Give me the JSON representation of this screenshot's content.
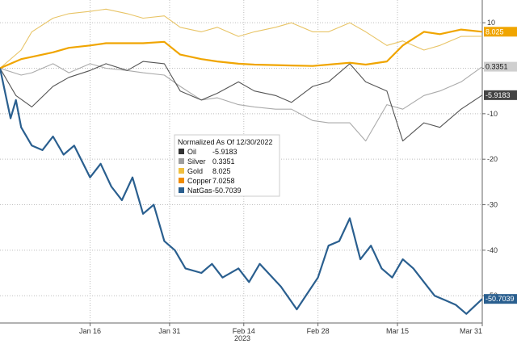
{
  "chart_data": {
    "type": "line",
    "title": "",
    "xlabel": "2023",
    "ylabel": "",
    "x_tick_labels": [
      "Jan 16",
      "Jan 31",
      "Feb 14",
      "Feb 28",
      "Mar 15",
      "Mar 31"
    ],
    "x_start": "2022-12-30",
    "x_ticks": [
      "2023-01-16",
      "2023-01-31",
      "2023-02-14",
      "2023-02-28",
      "2023-03-15",
      "2023-03-31"
    ],
    "ylim": [
      -56,
      15
    ],
    "y_ticks": [
      10,
      0,
      -10,
      -20,
      -30,
      -40,
      -50
    ],
    "y_tick_labels": [
      "10",
      "0",
      "-10",
      "-20",
      "-30",
      "-40",
      "-50"
    ],
    "grid": true,
    "legend": {
      "title": "Normalized As Of 12/30/2022",
      "placement": "center",
      "entries": [
        {
          "name": "Oil",
          "value": "-5.9183"
        },
        {
          "name": "Silver",
          "value": "0.3351"
        },
        {
          "name": "Gold",
          "value": "8.025"
        },
        {
          "name": "Copper",
          "value": "7.0258"
        },
        {
          "name": "NatGas",
          "value": "-50.7039"
        }
      ]
    },
    "series": [
      {
        "name": "Silver",
        "color": "#aaaaaa",
        "last_label": "0.3351",
        "points": [
          [
            "2022-12-30",
            0
          ],
          [
            "2023-01-03",
            -1.5
          ],
          [
            "2023-01-05",
            -1
          ],
          [
            "2023-01-09",
            1
          ],
          [
            "2023-01-12",
            -1
          ],
          [
            "2023-01-16",
            1
          ],
          [
            "2023-01-19",
            0
          ],
          [
            "2023-01-23",
            -0.5
          ],
          [
            "2023-01-26",
            -1
          ],
          [
            "2023-01-30",
            -1.5
          ],
          [
            "2023-02-02",
            -4
          ],
          [
            "2023-02-06",
            -7
          ],
          [
            "2023-02-09",
            -6.5
          ],
          [
            "2023-02-13",
            -8
          ],
          [
            "2023-02-16",
            -8.5
          ],
          [
            "2023-02-20",
            -9
          ],
          [
            "2023-02-23",
            -9
          ],
          [
            "2023-02-27",
            -11.5
          ],
          [
            "2023-03-02",
            -12
          ],
          [
            "2023-03-06",
            -12
          ],
          [
            "2023-03-09",
            -16
          ],
          [
            "2023-03-13",
            -8
          ],
          [
            "2023-03-16",
            -9
          ],
          [
            "2023-03-20",
            -6
          ],
          [
            "2023-03-23",
            -5
          ],
          [
            "2023-03-27",
            -3
          ],
          [
            "2023-03-31",
            0.3351
          ]
        ]
      },
      {
        "name": "Oil",
        "color": "#555555",
        "last_label": "-5.9183",
        "points": [
          [
            "2022-12-30",
            0
          ],
          [
            "2023-01-02",
            -6
          ],
          [
            "2023-01-05",
            -8.5
          ],
          [
            "2023-01-09",
            -4
          ],
          [
            "2023-01-12",
            -2
          ],
          [
            "2023-01-16",
            -0.5
          ],
          [
            "2023-01-19",
            1
          ],
          [
            "2023-01-23",
            -0.5
          ],
          [
            "2023-01-26",
            1.5
          ],
          [
            "2023-01-30",
            1
          ],
          [
            "2023-02-02",
            -5
          ],
          [
            "2023-02-06",
            -7
          ],
          [
            "2023-02-09",
            -5.5
          ],
          [
            "2023-02-13",
            -3
          ],
          [
            "2023-02-16",
            -5
          ],
          [
            "2023-02-20",
            -6
          ],
          [
            "2023-02-23",
            -7.5
          ],
          [
            "2023-02-27",
            -4
          ],
          [
            "2023-03-02",
            -3
          ],
          [
            "2023-03-06",
            1
          ],
          [
            "2023-03-09",
            -3
          ],
          [
            "2023-03-13",
            -5
          ],
          [
            "2023-03-16",
            -16
          ],
          [
            "2023-03-20",
            -12
          ],
          [
            "2023-03-23",
            -13
          ],
          [
            "2023-03-27",
            -9
          ],
          [
            "2023-03-31",
            -5.9183
          ]
        ]
      },
      {
        "name": "Copper",
        "color": "#e8c466",
        "last_label": "",
        "points": [
          [
            "2022-12-30",
            0
          ],
          [
            "2023-01-03",
            4
          ],
          [
            "2023-01-05",
            8
          ],
          [
            "2023-01-09",
            11
          ],
          [
            "2023-01-12",
            12
          ],
          [
            "2023-01-16",
            12.5
          ],
          [
            "2023-01-19",
            13
          ],
          [
            "2023-01-23",
            12
          ],
          [
            "2023-01-26",
            11
          ],
          [
            "2023-01-30",
            11.5
          ],
          [
            "2023-02-02",
            9
          ],
          [
            "2023-02-06",
            8
          ],
          [
            "2023-02-09",
            9
          ],
          [
            "2023-02-13",
            7
          ],
          [
            "2023-02-16",
            8
          ],
          [
            "2023-02-20",
            9
          ],
          [
            "2023-02-23",
            10
          ],
          [
            "2023-02-27",
            8
          ],
          [
            "2023-03-02",
            8
          ],
          [
            "2023-03-06",
            10
          ],
          [
            "2023-03-09",
            8
          ],
          [
            "2023-03-13",
            5
          ],
          [
            "2023-03-16",
            6
          ],
          [
            "2023-03-20",
            4
          ],
          [
            "2023-03-23",
            5
          ],
          [
            "2023-03-27",
            7
          ],
          [
            "2023-03-31",
            7.0258
          ]
        ]
      },
      {
        "name": "Gold",
        "color": "#f0a500",
        "last_label": "8.025",
        "points": [
          [
            "2022-12-30",
            0
          ],
          [
            "2023-01-03",
            2
          ],
          [
            "2023-01-05",
            2.5
          ],
          [
            "2023-01-09",
            3.5
          ],
          [
            "2023-01-12",
            4.5
          ],
          [
            "2023-01-16",
            5
          ],
          [
            "2023-01-19",
            5.5
          ],
          [
            "2023-01-23",
            5.5
          ],
          [
            "2023-01-26",
            5.5
          ],
          [
            "2023-01-30",
            5.8
          ],
          [
            "2023-02-02",
            3
          ],
          [
            "2023-02-06",
            2
          ],
          [
            "2023-02-09",
            1.5
          ],
          [
            "2023-02-13",
            1
          ],
          [
            "2023-02-16",
            0.8
          ],
          [
            "2023-02-20",
            0.7
          ],
          [
            "2023-02-23",
            0.6
          ],
          [
            "2023-02-27",
            0.5
          ],
          [
            "2023-03-02",
            0.8
          ],
          [
            "2023-03-06",
            1.2
          ],
          [
            "2023-03-09",
            0.8
          ],
          [
            "2023-03-13",
            1.5
          ],
          [
            "2023-03-16",
            5
          ],
          [
            "2023-03-20",
            8
          ],
          [
            "2023-03-23",
            7.5
          ],
          [
            "2023-03-27",
            8.5
          ],
          [
            "2023-03-31",
            8.025
          ]
        ]
      },
      {
        "name": "NatGas",
        "color": "#2a5f8f",
        "last_label": "-50.7039",
        "points": [
          [
            "2022-12-30",
            0
          ],
          [
            "2023-01-01",
            -11
          ],
          [
            "2023-01-02",
            -7
          ],
          [
            "2023-01-03",
            -13
          ],
          [
            "2023-01-05",
            -17
          ],
          [
            "2023-01-07",
            -18
          ],
          [
            "2023-01-09",
            -15
          ],
          [
            "2023-01-11",
            -19
          ],
          [
            "2023-01-13",
            -17
          ],
          [
            "2023-01-16",
            -24
          ],
          [
            "2023-01-18",
            -21
          ],
          [
            "2023-01-20",
            -26
          ],
          [
            "2023-01-22",
            -29
          ],
          [
            "2023-01-24",
            -24
          ],
          [
            "2023-01-26",
            -32
          ],
          [
            "2023-01-28",
            -30
          ],
          [
            "2023-01-30",
            -38
          ],
          [
            "2023-02-01",
            -40
          ],
          [
            "2023-02-03",
            -44
          ],
          [
            "2023-02-06",
            -45
          ],
          [
            "2023-02-08",
            -43
          ],
          [
            "2023-02-10",
            -46
          ],
          [
            "2023-02-13",
            -44
          ],
          [
            "2023-02-15",
            -47
          ],
          [
            "2023-02-17",
            -43
          ],
          [
            "2023-02-21",
            -48
          ],
          [
            "2023-02-24",
            -53
          ],
          [
            "2023-02-28",
            -46
          ],
          [
            "2023-03-02",
            -39
          ],
          [
            "2023-03-04",
            -38
          ],
          [
            "2023-03-06",
            -33
          ],
          [
            "2023-03-08",
            -42
          ],
          [
            "2023-03-10",
            -39
          ],
          [
            "2023-03-12",
            -44
          ],
          [
            "2023-03-14",
            -46
          ],
          [
            "2023-03-16",
            -42
          ],
          [
            "2023-03-18",
            -44
          ],
          [
            "2023-03-20",
            -47
          ],
          [
            "2023-03-22",
            -50
          ],
          [
            "2023-03-24",
            -51
          ],
          [
            "2023-03-26",
            -52
          ],
          [
            "2023-03-28",
            -54
          ],
          [
            "2023-03-31",
            -50.7039
          ]
        ]
      }
    ]
  }
}
